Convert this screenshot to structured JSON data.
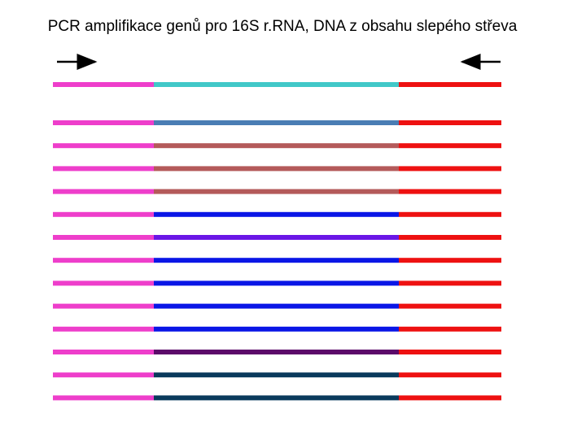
{
  "title": "PCR amplifikace genů pro 16S r.RNA, DNA z obsahu slepého střeva",
  "primer_arrows": [
    {
      "name": "forward-primer-arrow-icon",
      "direction": "right"
    },
    {
      "name": "reverse-primer-arrow-icon",
      "direction": "left"
    }
  ],
  "segment_colors": {
    "forward_primer_region": "#ee3ecb",
    "reverse_primer_region": "#ee1111"
  },
  "strands": [
    {
      "middle_color": "#41c8c8"
    },
    {
      "middle_color": "#4a7db4"
    },
    {
      "middle_color": "#b45a5a"
    },
    {
      "middle_color": "#b45a5a"
    },
    {
      "middle_color": "#b45a5a"
    },
    {
      "middle_color": "#0a16e6"
    },
    {
      "middle_color": "#6a16e6"
    },
    {
      "middle_color": "#0a16e6"
    },
    {
      "middle_color": "#0a16e6"
    },
    {
      "middle_color": "#0a16e6"
    },
    {
      "middle_color": "#0a16e6"
    },
    {
      "middle_color": "#5c0a6a"
    },
    {
      "middle_color": "#0a3a5c"
    },
    {
      "middle_color": "#0a3a5c"
    }
  ]
}
